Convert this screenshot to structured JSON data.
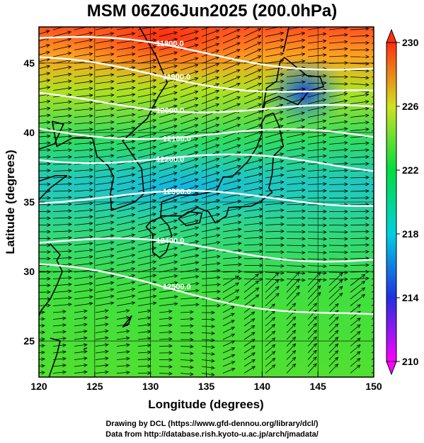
{
  "title": "MSM 06Z06Jun2025 (200.0hPa)",
  "x_axis": {
    "label": "Longitude (degrees)",
    "range": [
      120,
      150
    ],
    "ticks": [
      "120",
      "125",
      "130",
      "135",
      "140",
      "145",
      "150"
    ]
  },
  "y_axis": {
    "label": "Latitude  (degrees)",
    "range": [
      22.4,
      47.6
    ],
    "ticks": [
      "25",
      "30",
      "35",
      "40",
      "45"
    ]
  },
  "colorbar": {
    "range": [
      210,
      230
    ],
    "ticks": [
      "210",
      "214",
      "218",
      "222",
      "226",
      "230"
    ],
    "colors": [
      "#ff00ff",
      "#2030e0",
      "#00d0e0",
      "#00dd40",
      "#d0e020",
      "#ff3010"
    ]
  },
  "contours": [
    {
      "label": "11800.0",
      "lat_west": 46.8,
      "lat_east": 44.6
    },
    {
      "label": "11900.0",
      "lat_west": 45.0,
      "lat_east": 42.6
    },
    {
      "label": "12000.0",
      "lat_west": 42.4,
      "lat_east": 41.4
    },
    {
      "label": "12100.0",
      "lat_west": 40.2,
      "lat_east": 39.6
    },
    {
      "label": "12200.0",
      "lat_west": 38.4,
      "lat_east": 37.6
    },
    {
      "label": "12300.0",
      "lat_west": 35.4,
      "lat_east": 35.2
    },
    {
      "label": "12400.0",
      "lat_west": 32.2,
      "lat_east": 31.0
    },
    {
      "label": "12500.0",
      "lat_west": 30.2,
      "lat_east": 26.6
    }
  ],
  "credits": {
    "line1": "Drawing by DCL (https://www.gfd-dennou.org/library/dcl/)",
    "line2": "Data from http://database.rish.kyoto-u.ac.jp/arch/jmadata/"
  },
  "colors": {
    "contour": "#ffffff",
    "wind_vectors": "#000000",
    "coastline": "#000000"
  }
}
